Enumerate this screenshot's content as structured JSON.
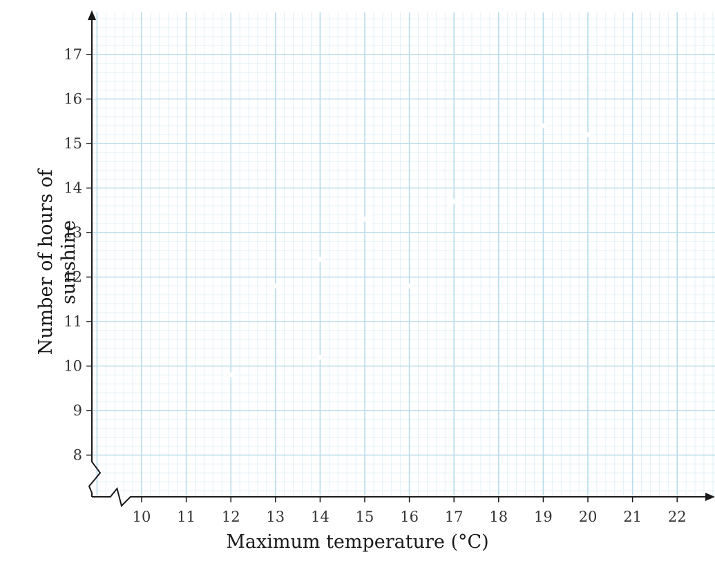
{
  "chart_data": {
    "type": "scatter",
    "title": "",
    "xlabel": "Maximum temperature (°C)",
    "ylabel_line1": "Number of hours of",
    "ylabel_line2": "sunshine",
    "x_ticks": [
      10,
      11,
      12,
      13,
      14,
      15,
      16,
      17,
      18,
      19,
      20,
      21,
      22
    ],
    "y_ticks": [
      8,
      9,
      10,
      11,
      12,
      13,
      14,
      15,
      16,
      17
    ],
    "xlim": [
      9,
      23
    ],
    "ylim": [
      7,
      18
    ],
    "axis_breaks": true,
    "grid": true,
    "marker": "cross",
    "points": [
      {
        "x": 12,
        "y": 9.8
      },
      {
        "x": 13,
        "y": 11.8
      },
      {
        "x": 14,
        "y": 12.4
      },
      {
        "x": 14,
        "y": 10.2
      },
      {
        "x": 15,
        "y": 13.3
      },
      {
        "x": 16,
        "y": 11.8
      },
      {
        "x": 17,
        "y": 13.7
      },
      {
        "x": 19,
        "y": 15.4
      },
      {
        "x": 20,
        "y": 15.2
      }
    ],
    "colors": {
      "grid_major": "#b9dcea",
      "grid_minor": "#e2f0f6",
      "axis": "#1a1a1a",
      "marker": "#ffffff"
    }
  }
}
